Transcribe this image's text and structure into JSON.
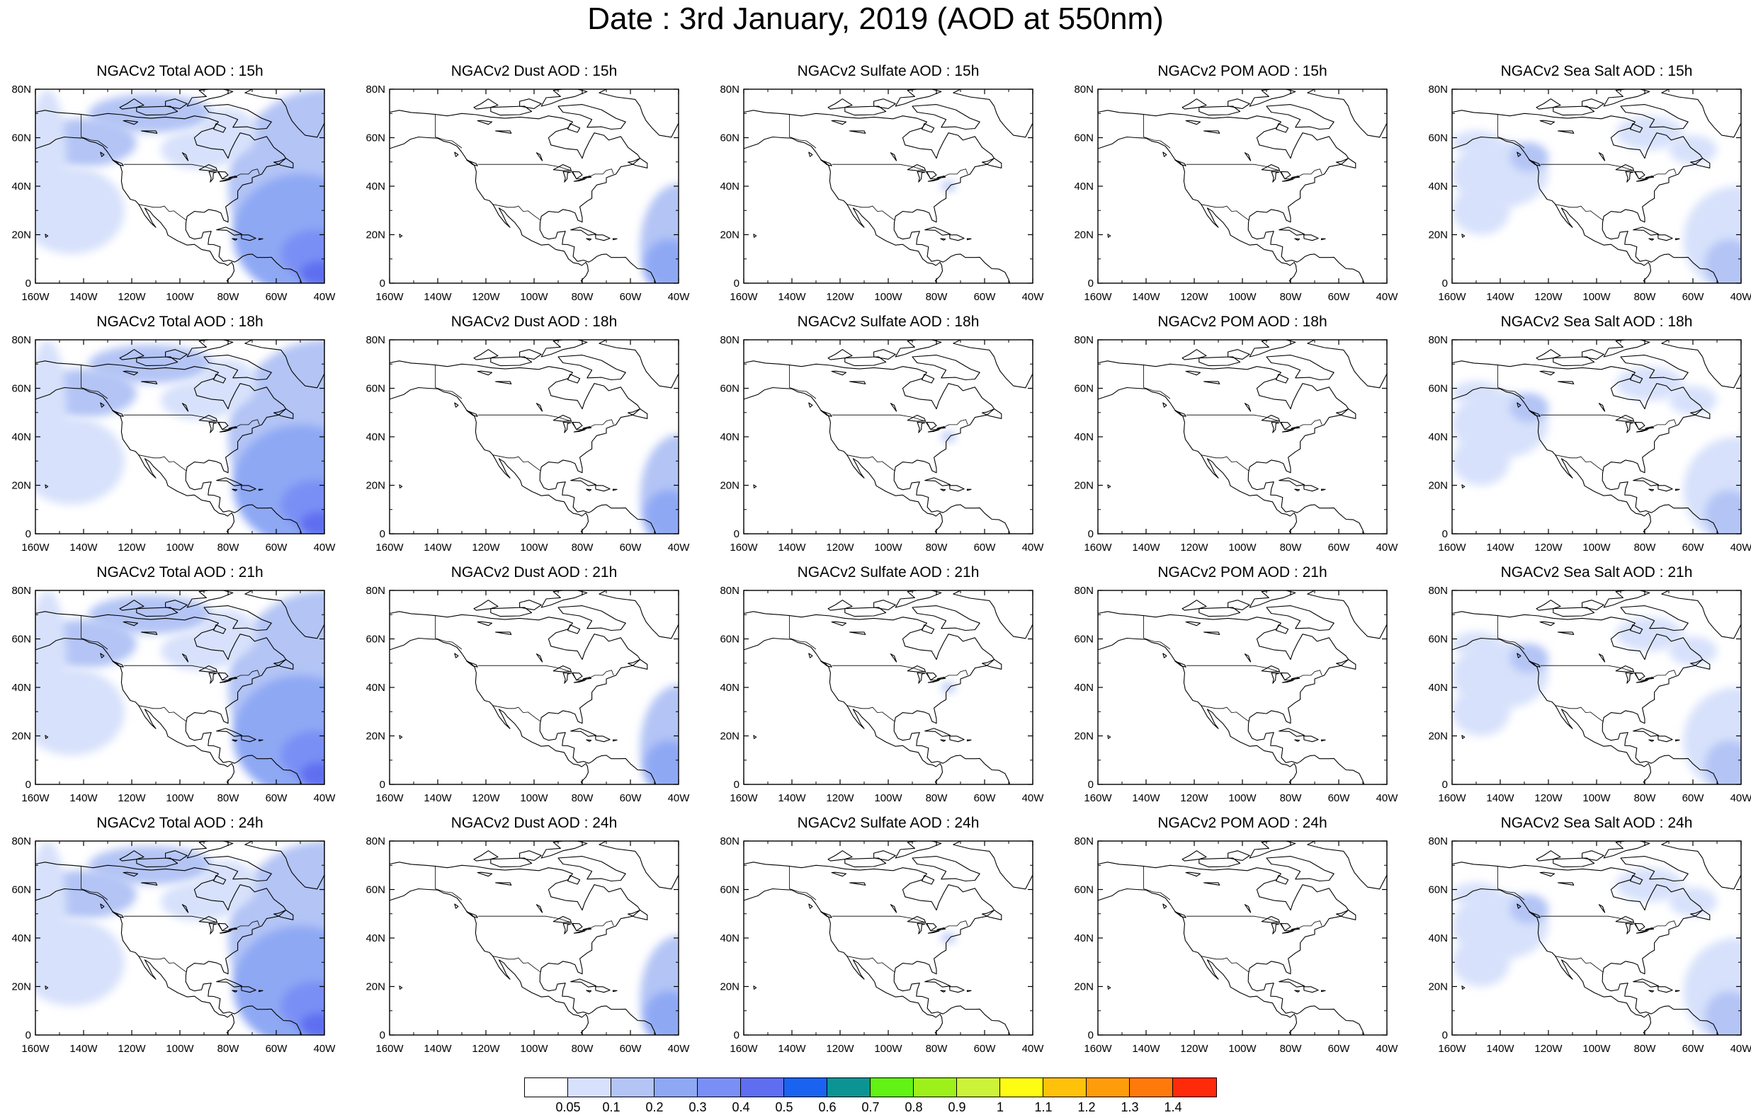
{
  "title": "Date : 3rd January, 2019 (AOD at 550nm)",
  "map": {
    "lat_ticks": [
      "80N",
      "60N",
      "40N",
      "20N",
      "0"
    ],
    "lon_ticks": [
      "160W",
      "140W",
      "120W",
      "100W",
      "80W",
      "60W",
      "40W"
    ],
    "lon_range": [
      -160,
      -40
    ],
    "lat_range": [
      0,
      80
    ]
  },
  "panels": [
    {
      "title": "NGACv2 Total AOD : 15h",
      "variable": "total"
    },
    {
      "title": "NGACv2 Dust AOD : 15h",
      "variable": "dust"
    },
    {
      "title": "NGACv2 Sulfate AOD : 15h",
      "variable": "sulfate"
    },
    {
      "title": "NGACv2 POM AOD : 15h",
      "variable": "pom"
    },
    {
      "title": "NGACv2 Sea Salt AOD : 15h",
      "variable": "seasalt"
    },
    {
      "title": "NGACv2 Total AOD : 18h",
      "variable": "total"
    },
    {
      "title": "NGACv2 Dust AOD : 18h",
      "variable": "dust"
    },
    {
      "title": "NGACv2 Sulfate AOD : 18h",
      "variable": "sulfate"
    },
    {
      "title": "NGACv2 POM AOD : 18h",
      "variable": "pom"
    },
    {
      "title": "NGACv2 Sea Salt AOD : 18h",
      "variable": "seasalt"
    },
    {
      "title": "NGACv2 Total AOD : 21h",
      "variable": "total"
    },
    {
      "title": "NGACv2 Dust AOD : 21h",
      "variable": "dust"
    },
    {
      "title": "NGACv2 Sulfate AOD : 21h",
      "variable": "sulfate"
    },
    {
      "title": "NGACv2 POM AOD : 21h",
      "variable": "pom"
    },
    {
      "title": "NGACv2 Sea Salt AOD : 21h",
      "variable": "seasalt"
    },
    {
      "title": "NGACv2 Total AOD : 24h",
      "variable": "total"
    },
    {
      "title": "NGACv2 Dust AOD : 24h",
      "variable": "dust"
    },
    {
      "title": "NGACv2 Sulfate AOD : 24h",
      "variable": "sulfate"
    },
    {
      "title": "NGACv2 POM AOD : 24h",
      "variable": "pom"
    },
    {
      "title": "NGACv2 Sea Salt  AOD : 24h",
      "variable": "seasalt"
    }
  ],
  "colorbar": {
    "colors": [
      "#ffffff",
      "#d7e1fb",
      "#b3c4f5",
      "#8ea8f4",
      "#7a8ff5",
      "#5f6ef0",
      "#1a63f0",
      "#0c9494",
      "#62f214",
      "#9ef01a",
      "#ccf23a",
      "#fffc14",
      "#ffc20a",
      "#ff9c0a",
      "#ff7a0a",
      "#ff2a0a"
    ],
    "labels": [
      "0.05",
      "0.1",
      "0.2",
      "0.3",
      "0.4",
      "0.5",
      "0.6",
      "0.7",
      "0.8",
      "0.9",
      "1",
      "1.1",
      "1.2",
      "1.3",
      "1.4"
    ]
  }
}
